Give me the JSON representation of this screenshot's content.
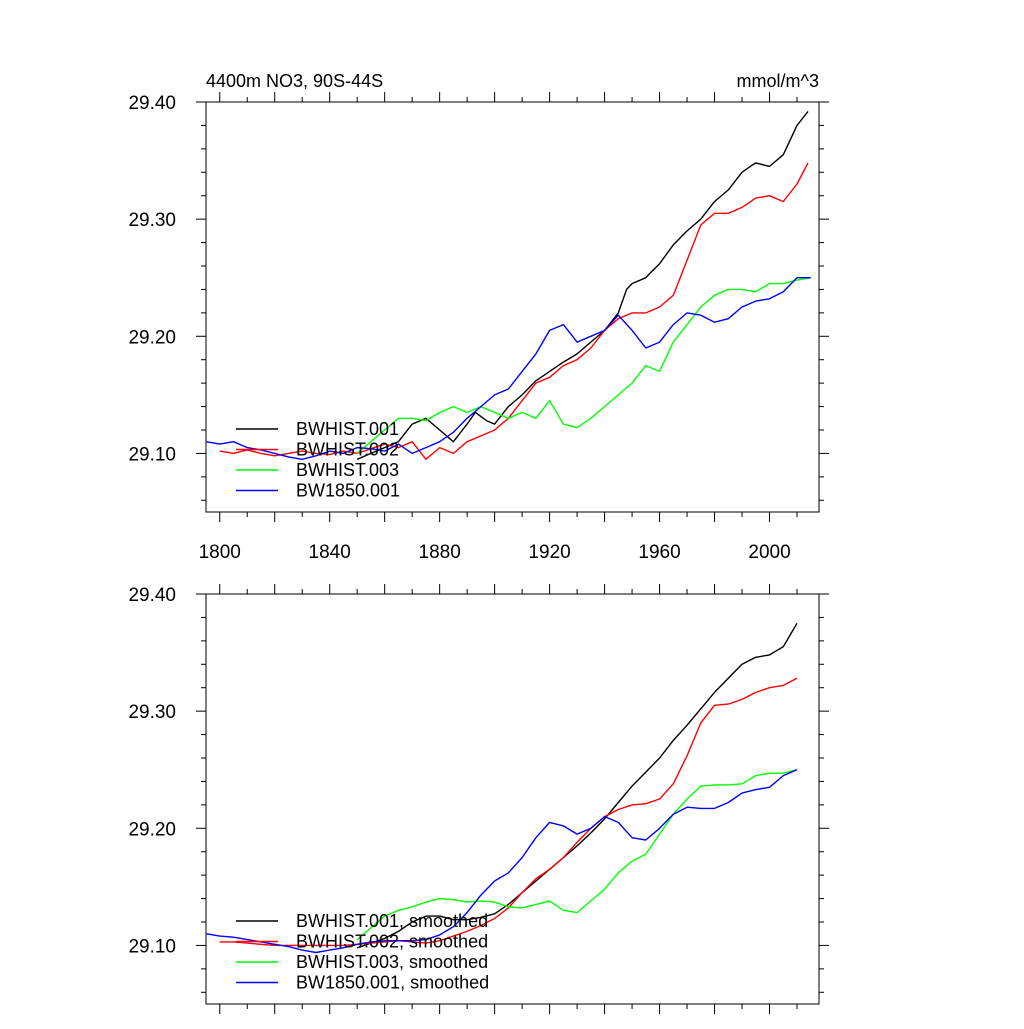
{
  "chart_data": [
    {
      "type": "line",
      "title": "4400m NO3, 90S-44S",
      "units": "mmol/m^3",
      "xlabel": "",
      "ylabel": "",
      "xlim": [
        1795,
        2018
      ],
      "ylim": [
        29.05,
        29.4
      ],
      "x_ticks": [
        1800,
        1840,
        1880,
        1920,
        1960,
        2000
      ],
      "x_tick_labels": [
        "1800",
        "1840",
        "1880",
        "1920",
        "1960",
        "2000"
      ],
      "y_ticks": [
        29.1,
        29.2,
        29.3,
        29.4
      ],
      "y_tick_labels": [
        "29.10",
        "29.20",
        "29.30",
        "29.40"
      ],
      "legend_position": "lower-left",
      "series": [
        {
          "name": "BWHIST.001",
          "color": "#000000",
          "x": [
            1850,
            1855,
            1860,
            1865,
            1870,
            1875,
            1880,
            1885,
            1890,
            1893,
            1897,
            1900,
            1905,
            1910,
            1915,
            1920,
            1925,
            1930,
            1935,
            1940,
            1945,
            1948,
            1950,
            1955,
            1957,
            1960,
            1965,
            1970,
            1975,
            1980,
            1985,
            1990,
            1993,
            1995,
            2000,
            2005,
            2010,
            2014
          ],
          "y": [
            29.095,
            29.1,
            29.105,
            29.11,
            29.125,
            29.13,
            29.12,
            29.11,
            29.125,
            29.135,
            29.128,
            29.125,
            29.14,
            29.15,
            29.162,
            29.17,
            29.178,
            29.185,
            29.195,
            29.205,
            29.22,
            29.24,
            29.245,
            29.25,
            29.255,
            29.262,
            29.278,
            29.29,
            29.3,
            29.315,
            29.325,
            29.34,
            29.345,
            29.348,
            29.345,
            29.355,
            29.38,
            29.392
          ]
        },
        {
          "name": "BWHIST.002",
          "color": "#ff0000",
          "x": [
            1800,
            1805,
            1810,
            1815,
            1820,
            1825,
            1830,
            1835,
            1840,
            1845,
            1850,
            1855,
            1860,
            1865,
            1870,
            1875,
            1880,
            1885,
            1890,
            1895,
            1900,
            1905,
            1910,
            1915,
            1920,
            1925,
            1930,
            1935,
            1940,
            1945,
            1950,
            1955,
            1960,
            1965,
            1970,
            1975,
            1980,
            1985,
            1990,
            1995,
            2000,
            2005,
            2010,
            2014
          ],
          "y": [
            29.102,
            29.1,
            29.103,
            29.1,
            29.098,
            29.1,
            29.102,
            29.1,
            29.099,
            29.102,
            29.1,
            29.104,
            29.108,
            29.105,
            29.11,
            29.095,
            29.105,
            29.1,
            29.11,
            29.115,
            29.12,
            29.13,
            29.145,
            29.16,
            29.165,
            29.175,
            29.18,
            29.19,
            29.205,
            29.215,
            29.22,
            29.22,
            29.225,
            29.235,
            29.265,
            29.295,
            29.305,
            29.305,
            29.31,
            29.318,
            29.32,
            29.315,
            29.33,
            29.348
          ]
        },
        {
          "name": "BWHIST.003",
          "color": "#00ff00",
          "x": [
            1850,
            1855,
            1860,
            1865,
            1870,
            1875,
            1880,
            1885,
            1890,
            1895,
            1900,
            1905,
            1910,
            1915,
            1920,
            1925,
            1930,
            1935,
            1940,
            1945,
            1950,
            1955,
            1960,
            1965,
            1970,
            1975,
            1980,
            1985,
            1990,
            1995,
            2000,
            2005,
            2010,
            2015
          ],
          "y": [
            29.1,
            29.11,
            29.12,
            29.13,
            29.13,
            29.128,
            29.135,
            29.14,
            29.135,
            29.14,
            29.135,
            29.13,
            29.135,
            29.13,
            29.145,
            29.125,
            29.122,
            29.13,
            29.14,
            29.15,
            29.16,
            29.175,
            29.17,
            29.195,
            29.21,
            29.225,
            29.235,
            29.24,
            29.24,
            29.238,
            29.245,
            29.245,
            29.248,
            29.25
          ]
        },
        {
          "name": "BW1850.001",
          "color": "#0000ff",
          "x": [
            1795,
            1800,
            1805,
            1810,
            1815,
            1820,
            1825,
            1830,
            1835,
            1840,
            1845,
            1850,
            1855,
            1860,
            1865,
            1870,
            1875,
            1880,
            1885,
            1890,
            1895,
            1900,
            1905,
            1910,
            1915,
            1920,
            1925,
            1930,
            1935,
            1940,
            1945,
            1950,
            1955,
            1960,
            1965,
            1970,
            1975,
            1980,
            1985,
            1990,
            1995,
            2000,
            2005,
            2010,
            2015
          ],
          "y": [
            29.11,
            29.108,
            29.11,
            29.105,
            29.103,
            29.1,
            29.097,
            29.095,
            29.098,
            29.102,
            29.1,
            29.105,
            29.104,
            29.102,
            29.108,
            29.1,
            29.105,
            29.11,
            29.118,
            29.13,
            29.14,
            29.15,
            29.155,
            29.17,
            29.185,
            29.205,
            29.21,
            29.195,
            29.2,
            29.205,
            29.218,
            29.205,
            29.19,
            29.195,
            29.21,
            29.22,
            29.218,
            29.212,
            29.215,
            29.225,
            29.23,
            29.232,
            29.238,
            29.25,
            29.25
          ]
        }
      ]
    },
    {
      "type": "line",
      "title": "",
      "xlabel": "",
      "ylabel": "",
      "xlim": [
        1795,
        2018
      ],
      "ylim": [
        29.05,
        29.4
      ],
      "x_ticks": [
        1800,
        1840,
        1880,
        1920,
        1960,
        2000
      ],
      "y_ticks": [
        29.1,
        29.2,
        29.3,
        29.4
      ],
      "y_tick_labels": [
        "29.10",
        "29.20",
        "29.30",
        "29.40"
      ],
      "legend_position": "lower-left",
      "series": [
        {
          "name": "BWHIST.001, smoothed",
          "color": "#000000",
          "x": [
            1850,
            1855,
            1860,
            1865,
            1870,
            1875,
            1880,
            1885,
            1890,
            1895,
            1900,
            1905,
            1910,
            1915,
            1920,
            1925,
            1930,
            1935,
            1940,
            1945,
            1950,
            1955,
            1960,
            1965,
            1970,
            1975,
            1980,
            1985,
            1990,
            1995,
            2000,
            2005,
            2010
          ],
          "y": [
            29.098,
            29.102,
            29.106,
            29.112,
            29.12,
            29.125,
            29.125,
            29.122,
            29.122,
            29.124,
            29.127,
            29.135,
            29.145,
            29.155,
            29.165,
            29.175,
            29.185,
            29.196,
            29.208,
            29.222,
            29.236,
            29.248,
            29.26,
            29.275,
            29.288,
            29.302,
            29.316,
            29.328,
            29.34,
            29.346,
            29.348,
            29.355,
            29.375
          ]
        },
        {
          "name": "BWHIST.002, smoothed",
          "color": "#ff0000",
          "x": [
            1800,
            1805,
            1810,
            1815,
            1820,
            1825,
            1830,
            1835,
            1840,
            1845,
            1850,
            1855,
            1860,
            1865,
            1870,
            1875,
            1880,
            1885,
            1890,
            1895,
            1900,
            1905,
            1910,
            1915,
            1920,
            1925,
            1930,
            1935,
            1940,
            1945,
            1950,
            1955,
            1960,
            1965,
            1970,
            1975,
            1980,
            1985,
            1990,
            1995,
            2000,
            2005,
            2010
          ],
          "y": [
            29.103,
            29.103,
            29.102,
            29.101,
            29.1,
            29.1,
            29.1,
            29.1,
            29.1,
            29.1,
            29.101,
            29.102,
            29.103,
            29.104,
            29.103,
            29.102,
            29.104,
            29.108,
            29.112,
            29.117,
            29.123,
            29.132,
            29.145,
            29.157,
            29.165,
            29.175,
            29.188,
            29.2,
            29.21,
            29.216,
            29.22,
            29.221,
            29.225,
            29.238,
            29.262,
            29.29,
            29.305,
            29.306,
            29.31,
            29.316,
            29.32,
            29.322,
            29.328
          ]
        },
        {
          "name": "BWHIST.003, smoothed",
          "color": "#00ff00",
          "x": [
            1850,
            1855,
            1860,
            1865,
            1870,
            1875,
            1880,
            1885,
            1890,
            1895,
            1900,
            1905,
            1910,
            1915,
            1920,
            1925,
            1930,
            1935,
            1940,
            1945,
            1950,
            1955,
            1960,
            1965,
            1970,
            1975,
            1980,
            1985,
            1990,
            1995,
            2000,
            2005,
            2010
          ],
          "y": [
            29.105,
            29.115,
            29.125,
            29.13,
            29.133,
            29.137,
            29.14,
            29.139,
            29.137,
            29.138,
            29.137,
            29.133,
            29.132,
            29.135,
            29.138,
            29.13,
            29.128,
            29.138,
            29.148,
            29.162,
            29.172,
            29.178,
            29.195,
            29.212,
            29.225,
            29.236,
            29.237,
            29.237,
            29.238,
            29.245,
            29.247,
            29.247,
            29.25
          ]
        },
        {
          "name": "BW1850.001, smoothed",
          "color": "#0000ff",
          "x": [
            1795,
            1800,
            1805,
            1810,
            1815,
            1820,
            1825,
            1830,
            1835,
            1840,
            1845,
            1850,
            1855,
            1860,
            1865,
            1870,
            1875,
            1880,
            1885,
            1890,
            1895,
            1900,
            1905,
            1910,
            1915,
            1920,
            1925,
            1930,
            1935,
            1940,
            1945,
            1950,
            1955,
            1960,
            1965,
            1970,
            1975,
            1980,
            1985,
            1990,
            1995,
            2000,
            2005,
            2010
          ],
          "y": [
            29.11,
            29.108,
            29.107,
            29.105,
            29.103,
            29.101,
            29.099,
            29.096,
            29.094,
            29.096,
            29.098,
            29.101,
            29.103,
            29.104,
            29.104,
            29.104,
            29.105,
            29.109,
            29.116,
            29.128,
            29.143,
            29.155,
            29.162,
            29.175,
            29.192,
            29.205,
            29.202,
            29.195,
            29.2,
            29.21,
            29.205,
            29.192,
            29.19,
            29.2,
            29.212,
            29.218,
            29.217,
            29.217,
            29.222,
            29.23,
            29.233,
            29.235,
            29.245,
            29.25
          ]
        }
      ]
    }
  ]
}
